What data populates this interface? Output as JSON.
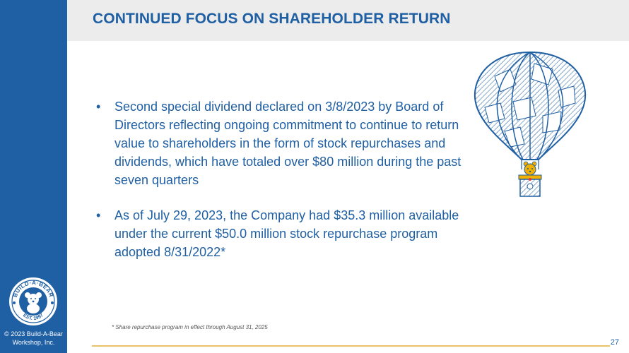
{
  "title": "CONTINUED FOCUS ON SHAREHOLDER RETURN",
  "bullets": [
    "Second special dividend declared on 3/8/2023 by Board of Directors reflecting ongoing commitment to continue to return value to shareholders in the form of stock repurchases and dividends, which have totaled over $80 million during the past seven quarters",
    "As of July 29, 2023, the Company had $35.3 million available under the current $50.0 million stock repurchase program adopted 8/31/2022*"
  ],
  "bullet_marker": "•",
  "footnote": "* Share repurchase program in effect through August 31, 2025",
  "page_number": "27",
  "copyright_line1": "© 2023 Build-A-Bear",
  "copyright_line2": "Workshop, Inc.",
  "logo": {
    "top_text": "BUILD·A·BEAR",
    "bottom_text": "EST. 1997"
  },
  "colors": {
    "brand_blue": "#1f5fa3",
    "title_band": "#ececec",
    "rule_gold": "#e8c36b"
  }
}
